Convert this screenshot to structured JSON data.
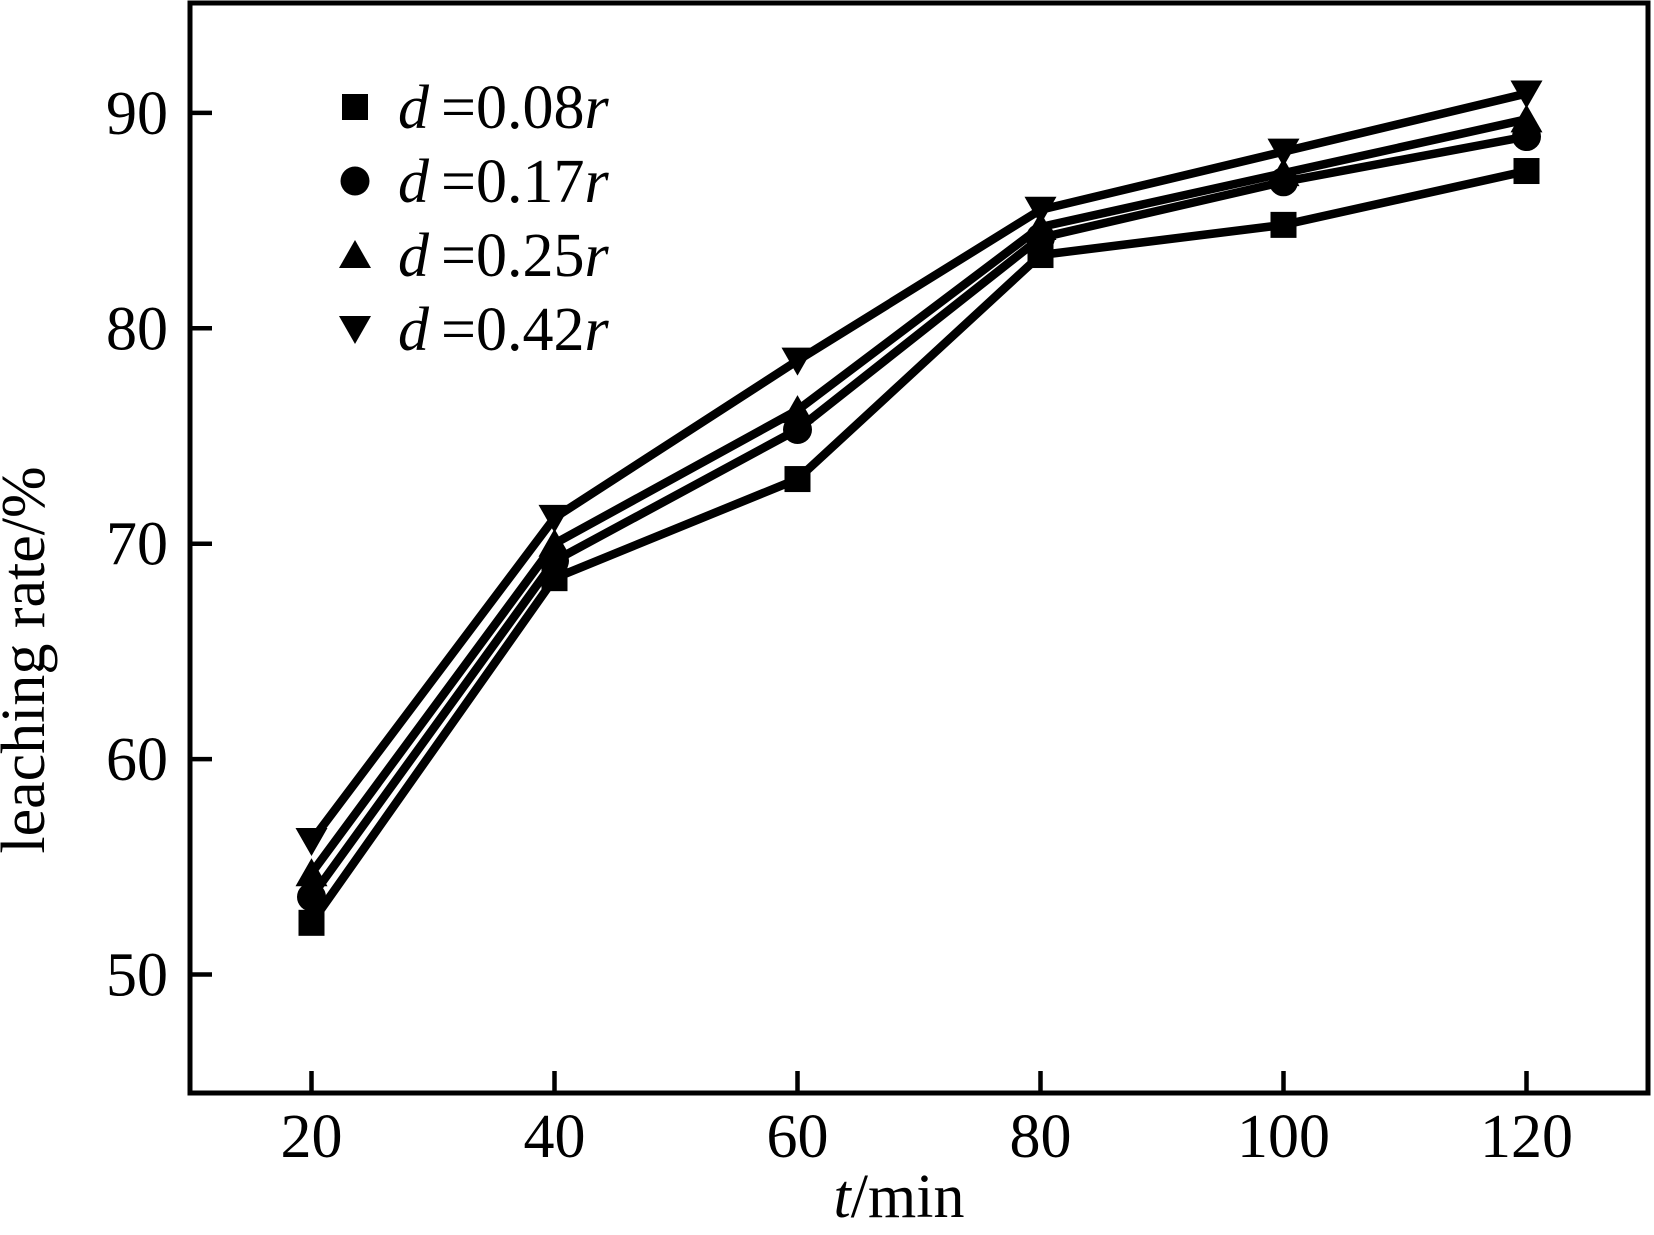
{
  "figure": {
    "background": "#ffffff",
    "ink": "#000000"
  },
  "chart_data": {
    "type": "line",
    "title": "",
    "xlabel_italic_part": "t",
    "xlabel_plain_part": "/min",
    "ylabel": "leaching rate/%",
    "xlim": [
      10,
      130
    ],
    "ylim": [
      44.5,
      95.1
    ],
    "xticks": [
      20,
      40,
      60,
      80,
      100,
      120
    ],
    "yticks": [
      50,
      60,
      70,
      80,
      90
    ],
    "grid": false,
    "legend_position": "upper-left-inside",
    "x": [
      20,
      40,
      60,
      80,
      100,
      120
    ],
    "series": [
      {
        "name": "d=0.08r",
        "marker": "square",
        "color": "#000000",
        "label_parts": {
          "pre": "d",
          "mid": "=0.08",
          "post": "r"
        },
        "values": [
          52.4,
          68.4,
          73.0,
          83.4,
          84.8,
          87.3
        ]
      },
      {
        "name": "d=0.17r",
        "marker": "circle",
        "color": "#000000",
        "label_parts": {
          "pre": "d",
          "mid": "=0.17",
          "post": "r"
        },
        "values": [
          53.6,
          69.2,
          75.3,
          84.2,
          86.8,
          88.9
        ]
      },
      {
        "name": "d=0.25r",
        "marker": "triangle-up",
        "color": "#000000",
        "label_parts": {
          "pre": "d",
          "mid": "=0.25",
          "post": "r"
        },
        "values": [
          54.7,
          70.0,
          76.2,
          84.7,
          87.2,
          89.7
        ]
      },
      {
        "name": "d=0.42r",
        "marker": "triangle-down",
        "color": "#000000",
        "label_parts": {
          "pre": "d",
          "mid": "=0.42",
          "post": "r"
        },
        "values": [
          56.2,
          71.2,
          78.5,
          85.5,
          88.2,
          90.9
        ]
      }
    ]
  }
}
